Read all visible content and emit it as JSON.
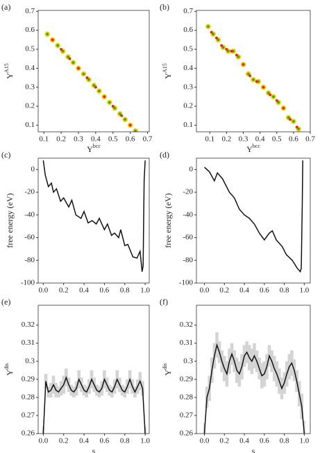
{
  "chart_data": [
    {
      "type": "scatter",
      "panel": "(a)",
      "xlabel": "Y",
      "xlabel_sup": "bcc",
      "ylabel": "Y",
      "ylabel_sup": "A15",
      "xlim": [
        0.067,
        0.71
      ],
      "ylim": [
        0.065,
        0.705
      ],
      "xticks": [
        0.1,
        0.2,
        0.3,
        0.4,
        0.5,
        0.6,
        0.7
      ],
      "yticks": [
        0.1,
        0.2,
        0.3,
        0.4,
        0.5,
        0.6,
        0.7
      ],
      "series": [
        {
          "color": "#3f9a3a",
          "stroke": "#f0d000",
          "x": [
            0.12,
            0.15,
            0.18,
            0.21,
            0.24,
            0.27,
            0.3,
            0.33,
            0.36,
            0.39,
            0.42,
            0.45,
            0.48,
            0.51,
            0.54,
            0.57,
            0.6,
            0.63
          ],
          "values": [
            0.58,
            0.55,
            0.52,
            0.49,
            0.46,
            0.43,
            0.4,
            0.37,
            0.34,
            0.31,
            0.28,
            0.25,
            0.22,
            0.19,
            0.16,
            0.13,
            0.1,
            0.07
          ]
        },
        {
          "color": "#e02a1a",
          "stroke": "#e02a1a",
          "x": [
            0.15,
            0.2,
            0.25,
            0.3,
            0.35,
            0.4,
            0.45,
            0.5,
            0.55,
            0.6
          ],
          "values": [
            0.55,
            0.5,
            0.45,
            0.4,
            0.35,
            0.3,
            0.25,
            0.2,
            0.15,
            0.1
          ]
        }
      ]
    },
    {
      "type": "scatter",
      "panel": "(b)",
      "xlabel": "Y",
      "xlabel_sup": "bcc",
      "ylabel": "Y",
      "ylabel_sup": "A15",
      "xlim": [
        0.02,
        0.7
      ],
      "ylim": [
        0.065,
        0.705
      ],
      "xticks": [
        0.1,
        0.2,
        0.3,
        0.4,
        0.5,
        0.6,
        0.7
      ],
      "yticks": [
        0.1,
        0.2,
        0.3,
        0.4,
        0.5,
        0.6,
        0.7
      ],
      "series": [
        {
          "color": "#3f9a3a",
          "stroke": "#f0d000",
          "x": [
            0.09,
            0.12,
            0.15,
            0.18,
            0.21,
            0.24,
            0.27,
            0.3,
            0.33,
            0.36,
            0.39,
            0.42,
            0.45,
            0.48,
            0.51,
            0.54,
            0.57,
            0.6,
            0.63,
            0.66
          ],
          "values": [
            0.62,
            0.58,
            0.55,
            0.51,
            0.49,
            0.49,
            0.46,
            0.42,
            0.37,
            0.34,
            0.33,
            0.3,
            0.27,
            0.25,
            0.22,
            0.19,
            0.14,
            0.12,
            0.08,
            0.05
          ]
        },
        {
          "color": "#e02a1a",
          "stroke": "#e02a1a",
          "x": [
            0.11,
            0.14,
            0.17,
            0.2,
            0.23,
            0.26,
            0.3,
            0.34,
            0.38,
            0.42,
            0.46,
            0.5,
            0.54,
            0.58,
            0.62,
            0.65
          ],
          "values": [
            0.59,
            0.56,
            0.52,
            0.5,
            0.49,
            0.47,
            0.42,
            0.36,
            0.33,
            0.3,
            0.26,
            0.23,
            0.19,
            0.13,
            0.09,
            0.05
          ]
        }
      ]
    },
    {
      "type": "line",
      "panel": "(c)",
      "ylabel": "free energy (eV)",
      "xlim": [
        -0.05,
        1.04
      ],
      "ylim": [
        -100,
        10
      ],
      "xticks": [
        {
          "value": 0,
          "label": "0.0"
        },
        0.2,
        0.4,
        0.6,
        0.8,
        {
          "value": 1,
          "label": "1.0"
        }
      ],
      "yticks": [
        0,
        -20,
        -40,
        -60,
        -80,
        -100
      ],
      "series": [
        {
          "color": "#111111",
          "x": [
            0,
            0.02,
            0.05,
            0.08,
            0.1,
            0.13,
            0.17,
            0.2,
            0.25,
            0.28,
            0.32,
            0.37,
            0.4,
            0.44,
            0.48,
            0.52,
            0.55,
            0.6,
            0.63,
            0.67,
            0.7,
            0.74,
            0.76,
            0.8,
            0.83,
            0.88,
            0.92,
            0.95,
            0.97,
            0.98,
            0.99,
            1.0
          ],
          "values": [
            8,
            -5,
            -15,
            -12,
            -20,
            -17,
            -28,
            -25,
            -33,
            -27,
            -40,
            -43,
            -37,
            -47,
            -45,
            -48,
            -43,
            -53,
            -48,
            -58,
            -56,
            -60,
            -53,
            -67,
            -66,
            -77,
            -78,
            -72,
            -90,
            -85,
            -10,
            8
          ]
        }
      ]
    },
    {
      "type": "line",
      "panel": "(d)",
      "ylabel": "free energy (eV)",
      "xlim": [
        -0.08,
        1.06
      ],
      "ylim": [
        -100,
        10
      ],
      "xticks": [
        {
          "value": 0,
          "label": "0.0"
        },
        0.2,
        0.4,
        0.6,
        0.8,
        {
          "value": 1,
          "label": "1.0"
        }
      ],
      "yticks": [
        0,
        -20,
        -40,
        -60,
        -80,
        -100
      ],
      "series": [
        {
          "color": "#111111",
          "x": [
            0,
            0.05,
            0.1,
            0.13,
            0.18,
            0.25,
            0.3,
            0.35,
            0.4,
            0.45,
            0.5,
            0.55,
            0.6,
            0.65,
            0.68,
            0.72,
            0.78,
            0.82,
            0.88,
            0.93,
            0.96,
            0.97,
            0.98,
            0.985
          ],
          "values": [
            2,
            -2,
            -10,
            -3,
            -8,
            -20,
            -25,
            -35,
            -40,
            -43,
            -48,
            -56,
            -62,
            -56,
            -54,
            -62,
            -68,
            -75,
            -80,
            -87,
            -90,
            -87,
            -30,
            8
          ]
        }
      ]
    },
    {
      "type": "line",
      "panel": "(e)",
      "xlabel": "s",
      "ylabel": "Y",
      "ylabel_sup": "dis",
      "xlim": [
        -0.05,
        1.04
      ],
      "ylim": [
        0.26,
        0.331
      ],
      "xticks": [
        {
          "value": 0,
          "label": "0.0"
        },
        0.2,
        0.4,
        0.6,
        0.8,
        {
          "value": 1,
          "label": "1.0"
        }
      ],
      "yticks": [
        0.26,
        0.27,
        0.28,
        0.29,
        0.3,
        0.31,
        0.32
      ],
      "series": [
        {
          "color": "#111111",
          "band_color": "#d4d4d4",
          "x": [
            0,
            0.025,
            0.05,
            0.075,
            0.1,
            0.125,
            0.15,
            0.175,
            0.2,
            0.225,
            0.25,
            0.275,
            0.3,
            0.325,
            0.35,
            0.375,
            0.4,
            0.425,
            0.45,
            0.475,
            0.5,
            0.525,
            0.55,
            0.575,
            0.6,
            0.625,
            0.65,
            0.675,
            0.7,
            0.725,
            0.75,
            0.775,
            0.8,
            0.825,
            0.85,
            0.875,
            0.9,
            0.925,
            0.95,
            0.975,
            1.0
          ],
          "values": [
            0.26,
            0.289,
            0.283,
            0.284,
            0.287,
            0.284,
            0.283,
            0.285,
            0.287,
            0.291,
            0.287,
            0.284,
            0.283,
            0.285,
            0.29,
            0.287,
            0.284,
            0.283,
            0.286,
            0.29,
            0.287,
            0.284,
            0.283,
            0.285,
            0.29,
            0.287,
            0.284,
            0.283,
            0.286,
            0.29,
            0.287,
            0.284,
            0.283,
            0.286,
            0.29,
            0.286,
            0.283,
            0.286,
            0.289,
            0.285,
            0.26
          ],
          "err": [
            0.004,
            0.004,
            0.003,
            0.004,
            0.005,
            0.004,
            0.003,
            0.004,
            0.005,
            0.005,
            0.004,
            0.003,
            0.003,
            0.004,
            0.005,
            0.004,
            0.003,
            0.003,
            0.004,
            0.005,
            0.004,
            0.003,
            0.003,
            0.004,
            0.005,
            0.004,
            0.003,
            0.003,
            0.004,
            0.005,
            0.004,
            0.003,
            0.003,
            0.004,
            0.005,
            0.004,
            0.003,
            0.004,
            0.005,
            0.004,
            0.004
          ]
        }
      ]
    },
    {
      "type": "line",
      "panel": "(f)",
      "xlabel": "s",
      "ylabel": "Y",
      "ylabel_sup": "dis",
      "xlim": [
        -0.08,
        1.06
      ],
      "ylim": [
        0.26,
        0.331
      ],
      "xticks": [
        {
          "value": 0,
          "label": "0.0"
        },
        0.2,
        0.4,
        0.6,
        0.8,
        {
          "value": 1,
          "label": "1.0"
        }
      ],
      "yticks": [
        0.26,
        0.27,
        0.28,
        0.29,
        0.3,
        0.31,
        0.32
      ],
      "series": [
        {
          "color": "#111111",
          "band_color": "#d4d4d4",
          "x": [
            0,
            0.025,
            0.05,
            0.075,
            0.1,
            0.125,
            0.15,
            0.175,
            0.2,
            0.225,
            0.25,
            0.275,
            0.3,
            0.325,
            0.35,
            0.375,
            0.4,
            0.425,
            0.45,
            0.475,
            0.5,
            0.525,
            0.55,
            0.575,
            0.6,
            0.625,
            0.65,
            0.675,
            0.7,
            0.725,
            0.75,
            0.775,
            0.8,
            0.825,
            0.85,
            0.875,
            0.9,
            0.925,
            0.95,
            0.975,
            1.0
          ],
          "values": [
            0.26,
            0.28,
            0.285,
            0.295,
            0.303,
            0.309,
            0.305,
            0.3,
            0.296,
            0.293,
            0.3,
            0.304,
            0.3,
            0.295,
            0.293,
            0.297,
            0.303,
            0.305,
            0.302,
            0.3,
            0.303,
            0.3,
            0.296,
            0.292,
            0.293,
            0.297,
            0.303,
            0.3,
            0.296,
            0.293,
            0.289,
            0.285,
            0.288,
            0.293,
            0.297,
            0.299,
            0.295,
            0.289,
            0.282,
            0.275,
            0.26
          ],
          "err": [
            0.006,
            0.006,
            0.007,
            0.007,
            0.007,
            0.007,
            0.006,
            0.006,
            0.007,
            0.007,
            0.007,
            0.006,
            0.006,
            0.007,
            0.007,
            0.007,
            0.006,
            0.006,
            0.007,
            0.007,
            0.007,
            0.006,
            0.006,
            0.007,
            0.007,
            0.007,
            0.006,
            0.006,
            0.007,
            0.007,
            0.007,
            0.006,
            0.006,
            0.007,
            0.007,
            0.007,
            0.006,
            0.006,
            0.007,
            0.007,
            0.007
          ]
        }
      ]
    }
  ]
}
